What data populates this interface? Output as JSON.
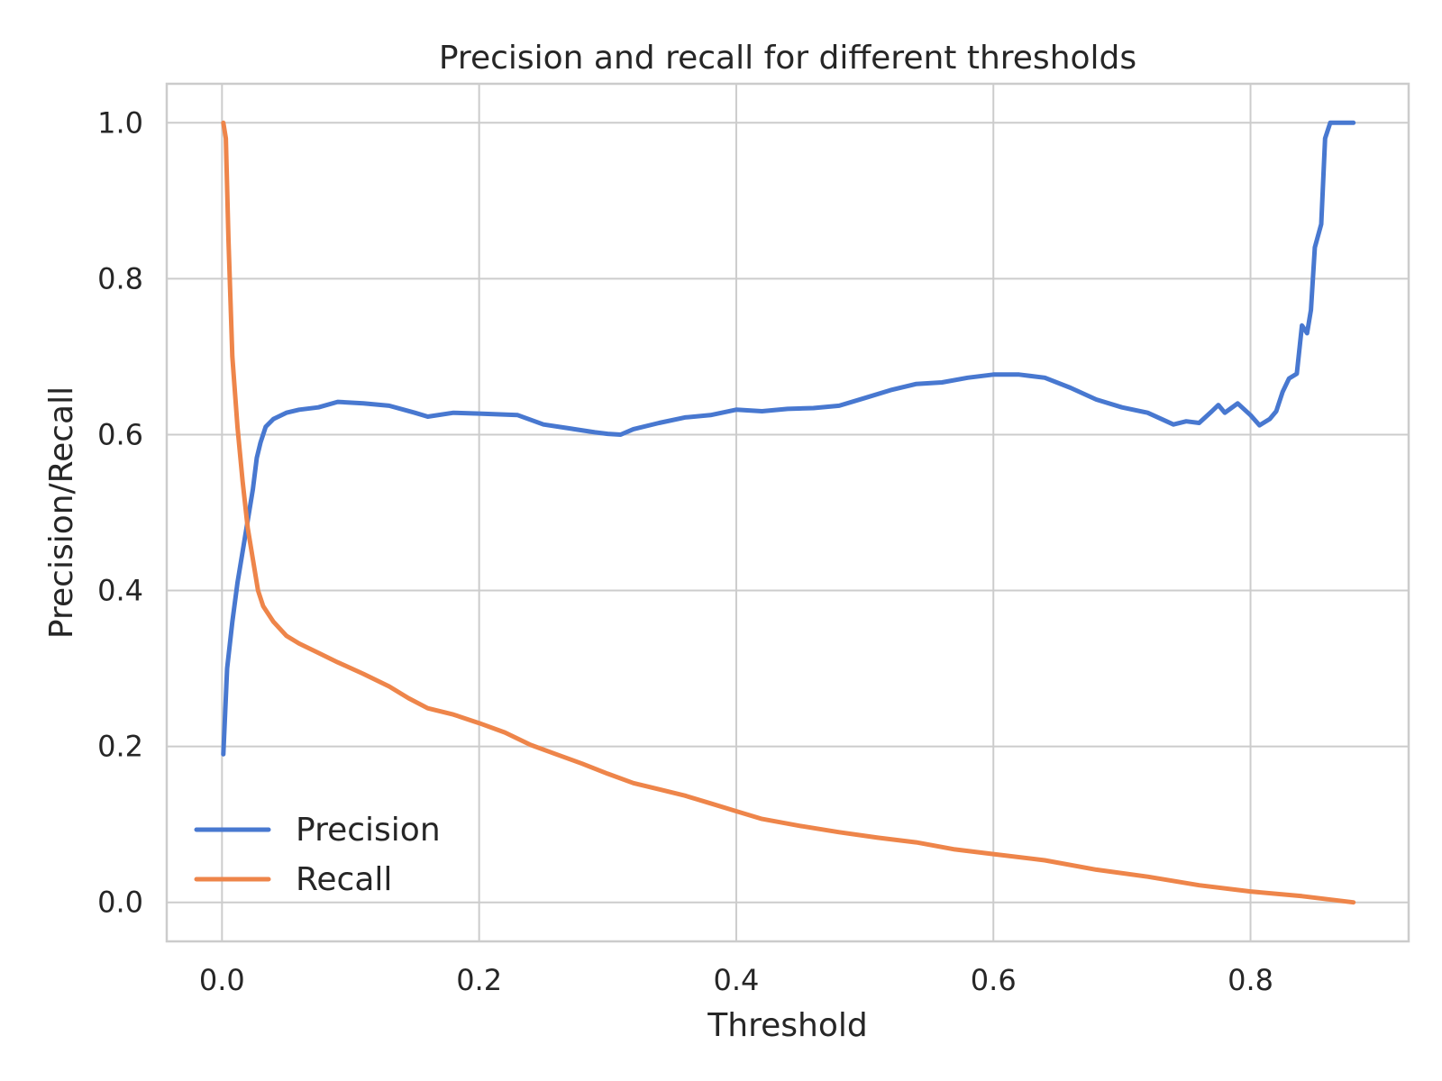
{
  "chart_data": {
    "type": "line",
    "title": "Precision and recall for different thresholds",
    "xlabel": "Threshold",
    "ylabel": "Precision/Recall",
    "xlim": [
      -0.043,
      0.923
    ],
    "ylim": [
      -0.05,
      1.05
    ],
    "xticks": [
      0.0,
      0.2,
      0.4,
      0.6,
      0.8
    ],
    "yticks": [
      0.0,
      0.2,
      0.4,
      0.6,
      0.8,
      1.0
    ],
    "xtick_labels": [
      "0.0",
      "0.2",
      "0.4",
      "0.6",
      "0.8"
    ],
    "ytick_labels": [
      "0.0",
      "0.2",
      "0.4",
      "0.6",
      "0.8",
      "1.0"
    ],
    "grid": true,
    "legend": "lower-left",
    "series": [
      {
        "name": "Precision",
        "color": "#4878d0",
        "points": [
          [
            0.001,
            0.19
          ],
          [
            0.004,
            0.3
          ],
          [
            0.008,
            0.36
          ],
          [
            0.012,
            0.41
          ],
          [
            0.016,
            0.45
          ],
          [
            0.02,
            0.49
          ],
          [
            0.024,
            0.53
          ],
          [
            0.027,
            0.57
          ],
          [
            0.03,
            0.59
          ],
          [
            0.034,
            0.61
          ],
          [
            0.04,
            0.62
          ],
          [
            0.05,
            0.628
          ],
          [
            0.06,
            0.632
          ],
          [
            0.075,
            0.635
          ],
          [
            0.09,
            0.642
          ],
          [
            0.11,
            0.64
          ],
          [
            0.13,
            0.637
          ],
          [
            0.15,
            0.628
          ],
          [
            0.16,
            0.623
          ],
          [
            0.18,
            0.628
          ],
          [
            0.2,
            0.627
          ],
          [
            0.23,
            0.625
          ],
          [
            0.25,
            0.613
          ],
          [
            0.27,
            0.608
          ],
          [
            0.29,
            0.603
          ],
          [
            0.3,
            0.601
          ],
          [
            0.31,
            0.6
          ],
          [
            0.32,
            0.607
          ],
          [
            0.34,
            0.615
          ],
          [
            0.36,
            0.622
          ],
          [
            0.38,
            0.625
          ],
          [
            0.4,
            0.632
          ],
          [
            0.42,
            0.63
          ],
          [
            0.44,
            0.633
          ],
          [
            0.46,
            0.634
          ],
          [
            0.48,
            0.637
          ],
          [
            0.5,
            0.647
          ],
          [
            0.52,
            0.657
          ],
          [
            0.54,
            0.665
          ],
          [
            0.56,
            0.667
          ],
          [
            0.58,
            0.673
          ],
          [
            0.6,
            0.677
          ],
          [
            0.62,
            0.677
          ],
          [
            0.64,
            0.673
          ],
          [
            0.66,
            0.66
          ],
          [
            0.68,
            0.645
          ],
          [
            0.7,
            0.635
          ],
          [
            0.72,
            0.628
          ],
          [
            0.74,
            0.613
          ],
          [
            0.75,
            0.617
          ],
          [
            0.76,
            0.615
          ],
          [
            0.77,
            0.63
          ],
          [
            0.775,
            0.638
          ],
          [
            0.78,
            0.628
          ],
          [
            0.79,
            0.64
          ],
          [
            0.8,
            0.625
          ],
          [
            0.807,
            0.612
          ],
          [
            0.815,
            0.62
          ],
          [
            0.82,
            0.63
          ],
          [
            0.825,
            0.655
          ],
          [
            0.83,
            0.672
          ],
          [
            0.836,
            0.678
          ],
          [
            0.84,
            0.74
          ],
          [
            0.844,
            0.73
          ],
          [
            0.847,
            0.76
          ],
          [
            0.85,
            0.84
          ],
          [
            0.855,
            0.87
          ],
          [
            0.858,
            0.98
          ],
          [
            0.862,
            1.0
          ],
          [
            0.88,
            1.0
          ]
        ]
      },
      {
        "name": "Recall",
        "color": "#ee854a",
        "points": [
          [
            0.001,
            1.0
          ],
          [
            0.003,
            0.98
          ],
          [
            0.005,
            0.85
          ],
          [
            0.008,
            0.7
          ],
          [
            0.012,
            0.61
          ],
          [
            0.016,
            0.54
          ],
          [
            0.02,
            0.48
          ],
          [
            0.024,
            0.44
          ],
          [
            0.028,
            0.4
          ],
          [
            0.032,
            0.38
          ],
          [
            0.04,
            0.36
          ],
          [
            0.05,
            0.342
          ],
          [
            0.06,
            0.332
          ],
          [
            0.075,
            0.32
          ],
          [
            0.09,
            0.308
          ],
          [
            0.11,
            0.293
          ],
          [
            0.13,
            0.277
          ],
          [
            0.145,
            0.262
          ],
          [
            0.16,
            0.249
          ],
          [
            0.18,
            0.241
          ],
          [
            0.2,
            0.23
          ],
          [
            0.22,
            0.218
          ],
          [
            0.24,
            0.202
          ],
          [
            0.26,
            0.19
          ],
          [
            0.28,
            0.178
          ],
          [
            0.3,
            0.165
          ],
          [
            0.32,
            0.153
          ],
          [
            0.34,
            0.145
          ],
          [
            0.36,
            0.137
          ],
          [
            0.38,
            0.127
          ],
          [
            0.4,
            0.117
          ],
          [
            0.42,
            0.107
          ],
          [
            0.45,
            0.098
          ],
          [
            0.48,
            0.09
          ],
          [
            0.51,
            0.083
          ],
          [
            0.54,
            0.077
          ],
          [
            0.57,
            0.068
          ],
          [
            0.6,
            0.062
          ],
          [
            0.64,
            0.054
          ],
          [
            0.68,
            0.042
          ],
          [
            0.72,
            0.033
          ],
          [
            0.76,
            0.022
          ],
          [
            0.8,
            0.014
          ],
          [
            0.84,
            0.008
          ],
          [
            0.88,
            0.0
          ]
        ]
      }
    ]
  }
}
